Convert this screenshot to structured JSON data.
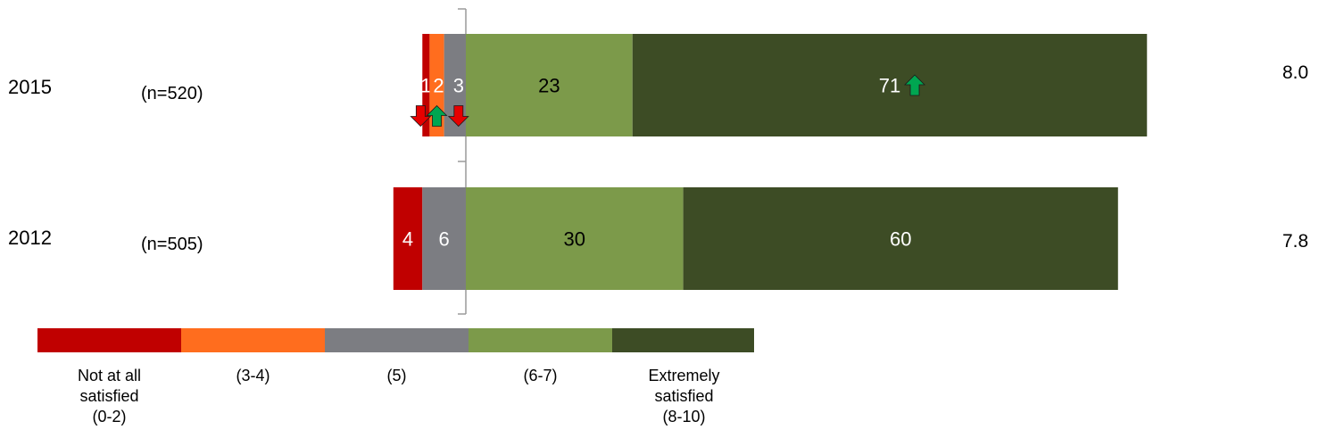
{
  "chart_data": {
    "type": "bar",
    "orientation": "horizontal",
    "stacked": "diverging",
    "categories": [
      "2015",
      "2012"
    ],
    "sample_sizes": [
      "(n=520)",
      "(n=505)"
    ],
    "mean_scores": [
      "8.0",
      "7.8"
    ],
    "series": [
      {
        "name": "Not at all satisfied (0-2)",
        "values": [
          1,
          4
        ],
        "color": "#c00000"
      },
      {
        "name": "(3-4)",
        "values": [
          2,
          0
        ],
        "color": "#ff6d1e"
      },
      {
        "name": "(5)",
        "values": [
          3,
          6
        ],
        "color": "#7c7d82"
      },
      {
        "name": "(6-7)",
        "values": [
          23,
          30
        ],
        "color": "#7c9a4a"
      },
      {
        "name": "Extremely satisfied (8-10)",
        "values": [
          71,
          60
        ],
        "color": "#3d4c25"
      }
    ],
    "data_labels": [
      [
        "1",
        "2",
        "3",
        "23",
        "71"
      ],
      [
        "4",
        "",
        "6",
        "30",
        "60"
      ]
    ],
    "significance": [
      {
        "row": "2015",
        "series": "Not at all satisfied (0-2)",
        "direction": "down",
        "color": "#e60000"
      },
      {
        "row": "2015",
        "series": "(3-4)",
        "direction": "up",
        "color": "#00a651"
      },
      {
        "row": "2015",
        "series": "(5)",
        "direction": "down",
        "color": "#e60000"
      },
      {
        "row": "2015",
        "series": "Extremely satisfied (8-10)",
        "direction": "up",
        "color": "#00a651"
      }
    ],
    "legend": {
      "position": "bottom-left",
      "labels": [
        [
          "Not at all",
          "satisfied",
          "(0-2)"
        ],
        [
          "(3-4)"
        ],
        [
          "(5)"
        ],
        [
          "(6-7)"
        ],
        [
          "Extremely",
          "satisfied",
          "(8-10)"
        ]
      ]
    },
    "grid": false
  }
}
